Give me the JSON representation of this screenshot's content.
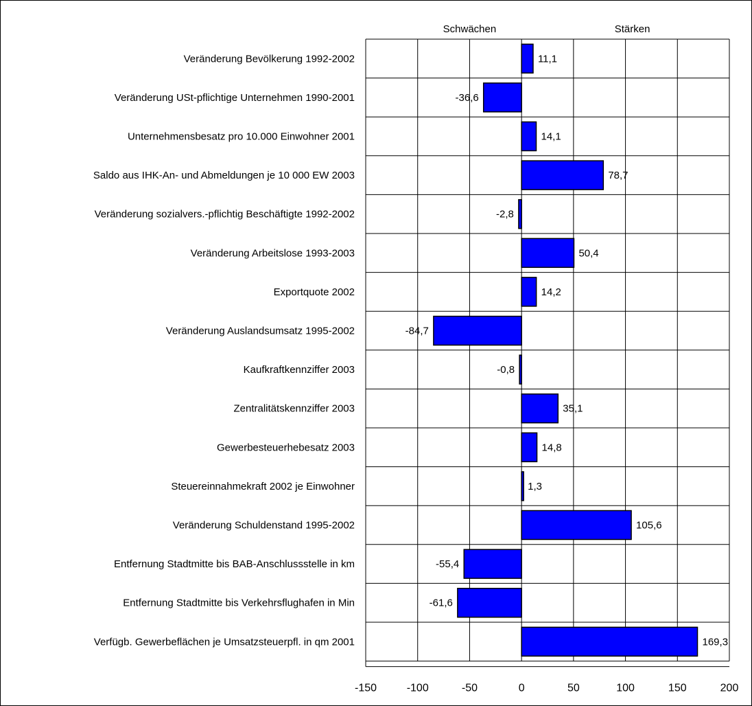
{
  "chart_data": {
    "type": "bar",
    "orientation": "horizontal",
    "header_left": "Schwächen",
    "header_right": "Stärken",
    "xlim": [
      -150,
      200
    ],
    "xticks": [
      -150,
      -100,
      -50,
      0,
      50,
      100,
      150,
      200
    ],
    "tick_labels": [
      "-150",
      "-100",
      "-50",
      "0",
      "50",
      "100",
      "150",
      "200"
    ],
    "grid": true,
    "bar_color": "#0000ff",
    "categories": [
      "Veränderung Bevölkerung 1992-2002",
      "Veränderung USt-pflichtige Unternehmen 1990-2001",
      "Unternehmensbesatz pro 10.000 Einwohner 2001",
      "Saldo aus IHK-An- und Abmeldungen je 10 000 EW 2003",
      "Veränderung sozialvers.-pflichtig Beschäftigte 1992-2002",
      "Veränderung Arbeitslose 1993-2003",
      "Exportquote 2002",
      "Veränderung Auslandsumsatz 1995-2002",
      "Kaufkraftkennziffer 2003",
      "Zentralitätskennziffer 2003",
      "Gewerbesteuerhebesatz 2003",
      "Steuereinnahmekraft 2002 je Einwohner",
      "Veränderung Schuldenstand 1995-2002",
      "Entfernung Stadtmitte bis BAB-Anschlussstelle in km",
      "Entfernung Stadtmitte bis Verkehrsflughafen in Min",
      "Verfügb. Gewerbeflächen je Umsatzsteuerpfl. in qm 2001"
    ],
    "values": [
      11.1,
      -36.6,
      14.1,
      78.7,
      -2.8,
      50.4,
      14.2,
      -84.7,
      -0.8,
      35.1,
      14.8,
      1.3,
      105.6,
      -55.4,
      -61.6,
      169.3
    ],
    "value_labels": [
      "11,1",
      "-36,6",
      "14,1",
      "78,7",
      "-2,8",
      "50,4",
      "14,2",
      "-84,7",
      "-0,8",
      "35,1",
      "14,8",
      "1,3",
      "105,6",
      "-55,4",
      "-61,6",
      "169,3"
    ]
  }
}
